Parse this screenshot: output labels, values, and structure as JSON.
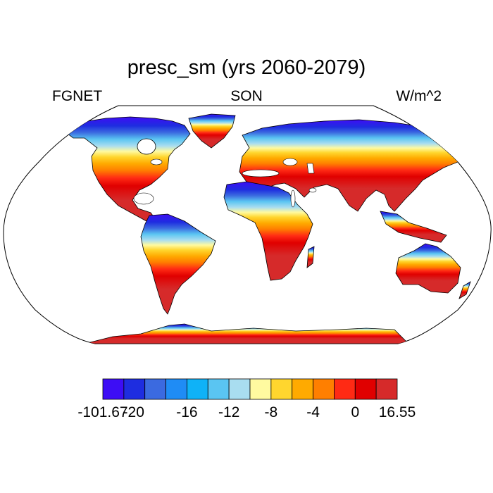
{
  "header": {
    "title": "presc_sm (yrs 2060-2079)",
    "left_label": "FGNET",
    "center_label": "SON",
    "right_label": "W/m^2"
  },
  "map": {
    "projection": "Robinson",
    "palette": {
      "lake_outline": "#ffffff",
      "coast": "#000000",
      "frame": "#000000",
      "background": "#ffffff"
    }
  },
  "colorbar": {
    "colors": [
      "#3d0df5",
      "#1e2de0",
      "#3b6ae0",
      "#1f8cf5",
      "#0fb2f7",
      "#5ac5f2",
      "#a9ddf0",
      "#fffaa0",
      "#ffd62e",
      "#ffaa00",
      "#ff7f00",
      "#ff2a14",
      "#e00000",
      "#d62a2a"
    ],
    "tick_labels": [
      "-101.67",
      "-20",
      "-16",
      "-12",
      "-8",
      "-4",
      "0",
      "16.55"
    ]
  }
}
